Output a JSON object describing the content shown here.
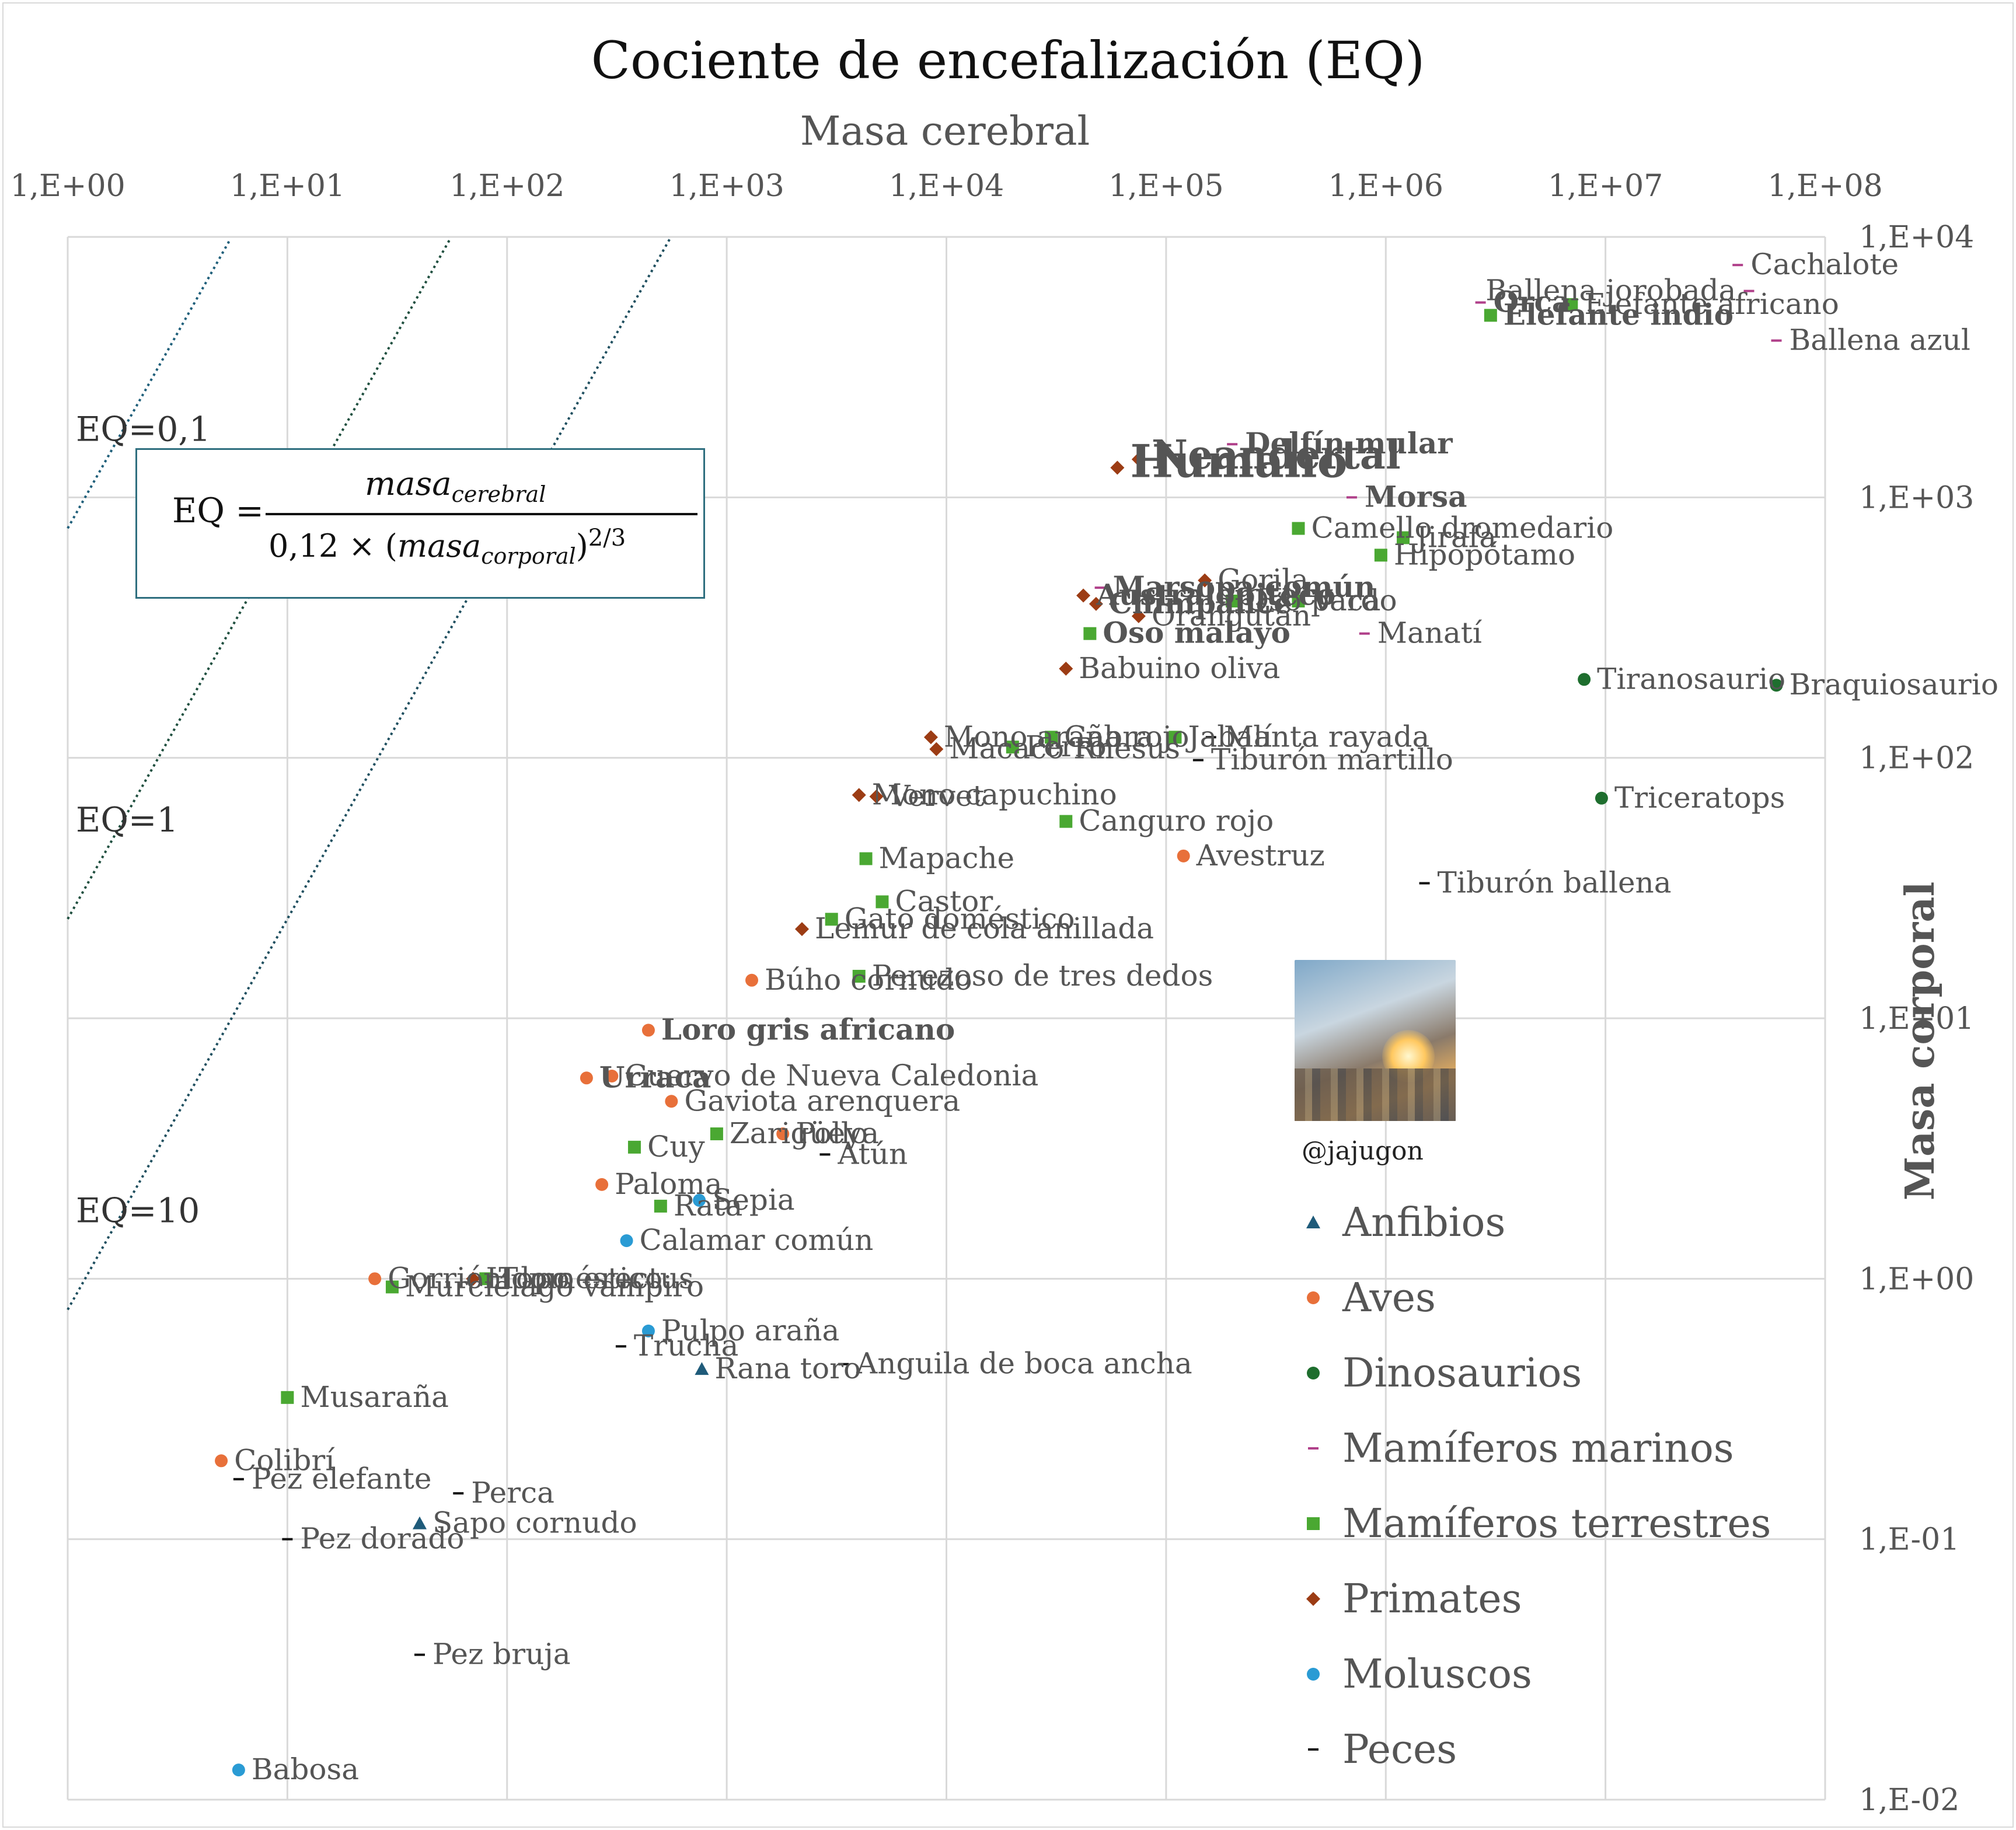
{
  "chart_data": {
    "type": "scatter",
    "title": "Cociente de encefalización (EQ)",
    "xlabel": "Masa cerebral",
    "ylabel": "Masa corporal",
    "x_scale": "log",
    "y_scale": "log",
    "xlim": [
      1,
      100000000
    ],
    "ylim": [
      0.01,
      10000
    ],
    "x_ticks": [
      "1,E+00",
      "1,E+01",
      "1,E+02",
      "1,E+03",
      "1,E+04",
      "1,E+05",
      "1,E+06",
      "1,E+07",
      "1,E+08"
    ],
    "y_ticks": [
      "1,E+04",
      "1,E+03",
      "1,E+02",
      "1,E+01",
      "1,E+00",
      "1,E-01",
      "1,E-02"
    ],
    "grid": true,
    "legend_position": "bottom-right",
    "colors": {
      "Anfibios": "#1f5b7a",
      "Aves": "#e8703a",
      "Dinosaurios": "#1e6e2e",
      "Mamíferos marinos": "#b0408a",
      "Mamíferos terrestres": "#4aa832",
      "Primates": "#9c3c14",
      "Moluscos": "#2a9bd4",
      "Peces": "#111111"
    },
    "markers": {
      "Anfibios": "triangle",
      "Aves": "circle",
      "Dinosaurios": "circle",
      "Mamíferos marinos": "dash",
      "Mamíferos terrestres": "square",
      "Primates": "diamond",
      "Moluscos": "circle",
      "Peces": "dash"
    },
    "eq_lines": [
      {
        "label": "EQ=10",
        "eq": 10
      },
      {
        "label": "EQ=1",
        "eq": 1
      },
      {
        "label": "EQ=0,1",
        "eq": 0.1
      }
    ],
    "series": [
      {
        "name": "Anfibios",
        "points": [
          {
            "label": "Rana toro",
            "x": 770,
            "y": 0.45
          },
          {
            "label": "Sapo cornudo",
            "x": 40,
            "y": 0.115
          }
        ]
      },
      {
        "name": "Aves",
        "points": [
          {
            "label": "Loro gris africano",
            "x": 440,
            "y": 9.0
          },
          {
            "label": "Búho cornudo",
            "x": 1300,
            "y": 14.0
          },
          {
            "label": "Urraca",
            "x": 230,
            "y": 5.9
          },
          {
            "label": "Cuervo de Nueva Caledonia",
            "x": 300,
            "y": 6.0
          },
          {
            "label": "Gaviota arenquera",
            "x": 560,
            "y": 4.8
          },
          {
            "label": "Pollo",
            "x": 1800,
            "y": 3.6
          },
          {
            "label": "Paloma",
            "x": 270,
            "y": 2.3
          },
          {
            "label": "Gorrión doméstico",
            "x": 25,
            "y": 1.0
          },
          {
            "label": "Colibrí",
            "x": 5,
            "y": 0.2
          },
          {
            "label": "Avestruz",
            "x": 120000,
            "y": 42
          }
        ]
      },
      {
        "name": "Dinosaurios",
        "points": [
          {
            "label": "Tiranosaurio",
            "x": 8000000,
            "y": 200
          },
          {
            "label": "Braquiosaurio",
            "x": 60000000,
            "y": 190
          },
          {
            "label": "Triceratops",
            "x": 9600000,
            "y": 70
          }
        ]
      },
      {
        "name": "Mamíferos marinos",
        "points": [
          {
            "label": "Cachalote",
            "x": 40000000,
            "y": 7800
          },
          {
            "label": "Ballena jorobada",
            "x": 45000000,
            "y": 6200
          },
          {
            "label": "Orca",
            "x": 2700000,
            "y": 5600
          },
          {
            "label": "Ballena azul",
            "x": 60000000,
            "y": 4000
          },
          {
            "label": "Delfín mular",
            "x": 200000,
            "y": 1600
          },
          {
            "label": "Marsopa común",
            "x": 50000,
            "y": 450
          },
          {
            "label": "Morsa",
            "x": 700000,
            "y": 1000
          },
          {
            "label": "Manatí",
            "x": 800000,
            "y": 300
          }
        ]
      },
      {
        "name": "Mamíferos terrestres",
        "points": [
          {
            "label": "Elefante indio",
            "x": 3000000,
            "y": 5000
          },
          {
            "label": "Elefante africano",
            "x": 7000000,
            "y": 5500
          },
          {
            "label": "Camello dromedario",
            "x": 400000,
            "y": 760
          },
          {
            "label": "Jirafa",
            "x": 1200000,
            "y": 700
          },
          {
            "label": "Hipopótamo",
            "x": 950000,
            "y": 600
          },
          {
            "label": "Vaca",
            "x": 400000,
            "y": 400
          },
          {
            "label": "Oso pardo",
            "x": 200000,
            "y": 400
          },
          {
            "label": "Oso malayo",
            "x": 45000,
            "y": 300
          },
          {
            "label": "Cabra",
            "x": 30000,
            "y": 120
          },
          {
            "label": "Jabalí",
            "x": 110000,
            "y": 120
          },
          {
            "label": "Perro",
            "x": 20000,
            "y": 110
          },
          {
            "label": "Canguro rojo",
            "x": 35000,
            "y": 57
          },
          {
            "label": "Mapache",
            "x": 4300,
            "y": 41
          },
          {
            "label": "Castor",
            "x": 5100,
            "y": 28
          },
          {
            "label": "Gato doméstico",
            "x": 3000,
            "y": 24
          },
          {
            "label": "Perezoso de tres dedos",
            "x": 4000,
            "y": 14.5
          },
          {
            "label": "Zarigüeya",
            "x": 900,
            "y": 3.6
          },
          {
            "label": "Cuy",
            "x": 380,
            "y": 3.2
          },
          {
            "label": "Rata",
            "x": 500,
            "y": 1.9
          },
          {
            "label": "Topo",
            "x": 80,
            "y": 1.0
          },
          {
            "label": "Murciélago vampiro",
            "x": 30,
            "y": 0.93
          },
          {
            "label": "Musaraña",
            "x": 10,
            "y": 0.35
          }
        ]
      },
      {
        "name": "Primates",
        "points": [
          {
            "label": "Humano",
            "x": 60000,
            "y": 1300
          },
          {
            "label": "Neandertal",
            "x": 75000,
            "y": 1400
          },
          {
            "label": "Gorila",
            "x": 150000,
            "y": 480
          },
          {
            "label": "Australopiteco",
            "x": 42000,
            "y": 420
          },
          {
            "label": "Chimpancé",
            "x": 48000,
            "y": 390
          },
          {
            "label": "Orangután",
            "x": 75000,
            "y": 350
          },
          {
            "label": "Babuino oliva",
            "x": 35000,
            "y": 220
          },
          {
            "label": "Mono araña rojo",
            "x": 8500,
            "y": 120
          },
          {
            "label": "Macaco Rhesus",
            "x": 9000,
            "y": 108
          },
          {
            "label": "Mono capuchino",
            "x": 4000,
            "y": 72
          },
          {
            "label": "Vervet",
            "x": 4800,
            "y": 71
          },
          {
            "label": "Lemur de cola anillada",
            "x": 2200,
            "y": 22
          },
          {
            "label": "Homo erectus",
            "x": 70,
            "y": 1.0
          }
        ]
      },
      {
        "name": "Moluscos",
        "points": [
          {
            "label": "Sepia",
            "x": 750,
            "y": 2.0
          },
          {
            "label": "Calamar común",
            "x": 350,
            "y": 1.4
          },
          {
            "label": "Pulpo araña",
            "x": 440,
            "y": 0.63
          },
          {
            "label": "Babosa",
            "x": 6,
            "y": 0.013
          }
        ]
      },
      {
        "name": "Peces",
        "points": [
          {
            "label": "Manta rayada",
            "x": 160000,
            "y": 120
          },
          {
            "label": "Tiburón martillo",
            "x": 140000,
            "y": 98
          },
          {
            "label": "Tiburón ballena",
            "x": 1500000,
            "y": 33
          },
          {
            "label": "Atún",
            "x": 2800,
            "y": 3.0
          },
          {
            "label": "Trucha",
            "x": 330,
            "y": 0.55
          },
          {
            "label": "Anguila de boca ancha",
            "x": 3400,
            "y": 0.47
          },
          {
            "label": "Pez elefante",
            "x": 6,
            "y": 0.17
          },
          {
            "label": "Perca",
            "x": 60,
            "y": 0.15
          },
          {
            "label": "Pez dorado",
            "x": 10,
            "y": 0.1
          },
          {
            "label": "Pez bruja",
            "x": 40,
            "y": 0.036
          }
        ]
      }
    ]
  },
  "formula": {
    "lhs": "EQ =",
    "numerator": "masa",
    "numerator_sub": "cerebral",
    "denominator_coef": "0,12 × (",
    "denominator_var": "masa",
    "denominator_sub": "corporal",
    "denominator_close": ")",
    "exponent": "2/3"
  },
  "watermark": {
    "handle": "@jajugon"
  }
}
